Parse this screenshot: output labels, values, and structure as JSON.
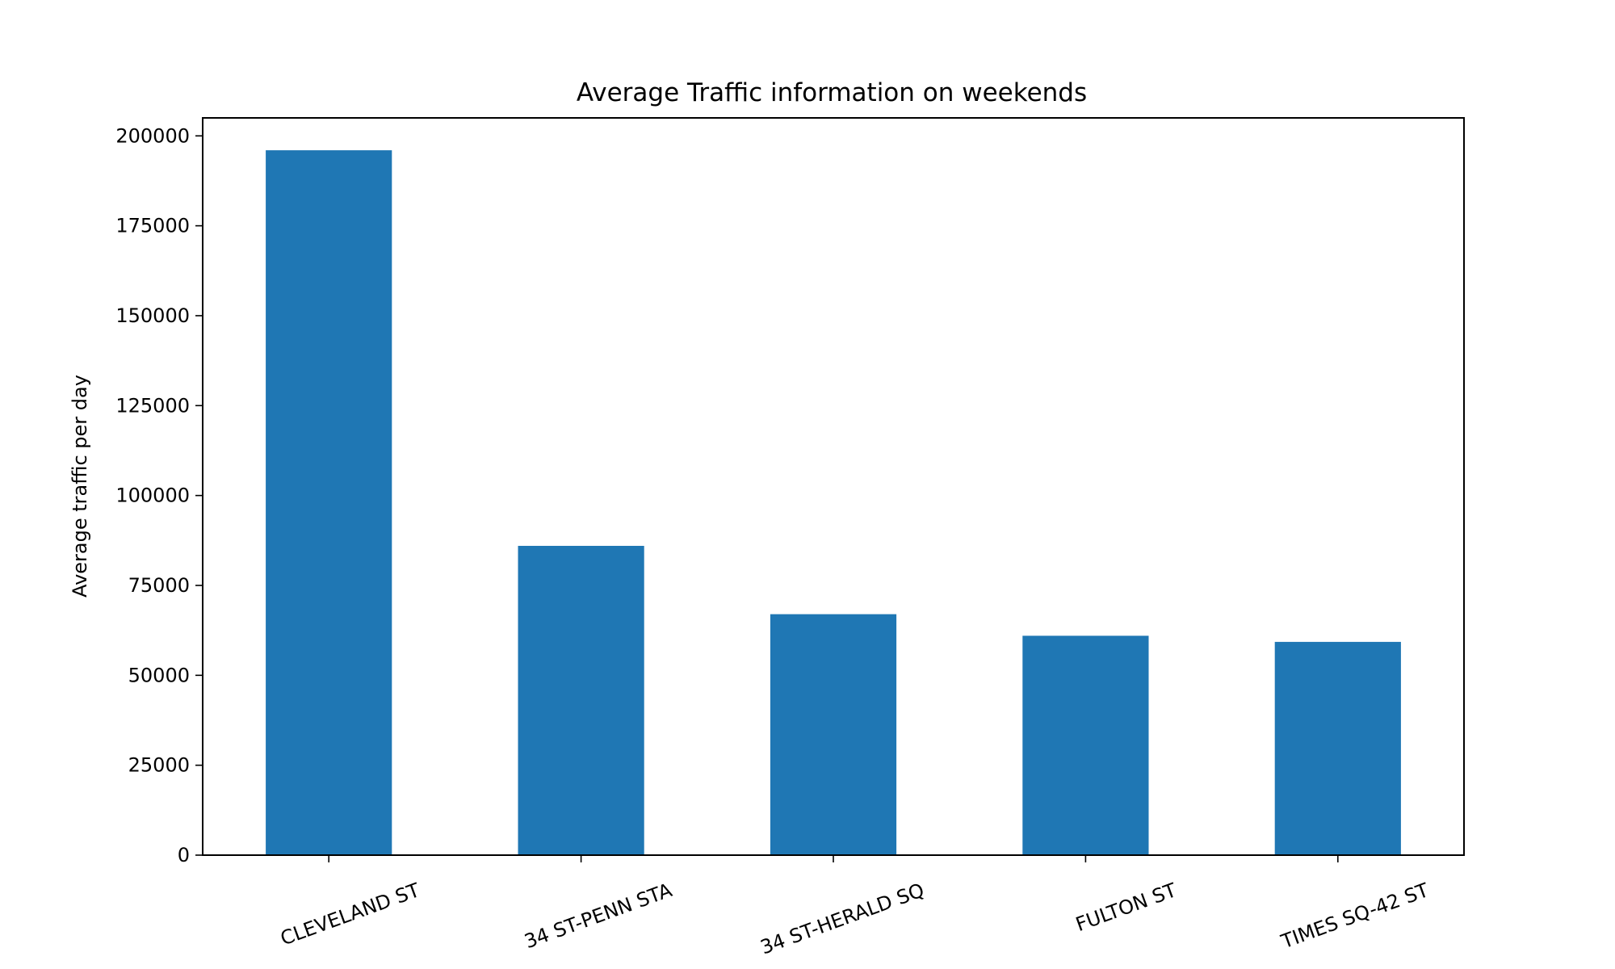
{
  "chart_data": {
    "type": "bar",
    "title": "Average Traffic information on weekends",
    "xlabel": "",
    "ylabel": "Average traffic per day",
    "categories": [
      "CLEVELAND ST",
      "34 ST-PENN STA",
      "34 ST-HERALD SQ",
      "FULTON ST",
      "TIMES SQ-42 ST"
    ],
    "values": [
      196000,
      86000,
      67000,
      61000,
      59300
    ],
    "ylim": [
      0,
      205000
    ],
    "yticks": [
      0,
      25000,
      50000,
      75000,
      100000,
      125000,
      150000,
      175000,
      200000
    ],
    "bar_color": "#1f77b4",
    "grid": false,
    "legend": "none"
  }
}
